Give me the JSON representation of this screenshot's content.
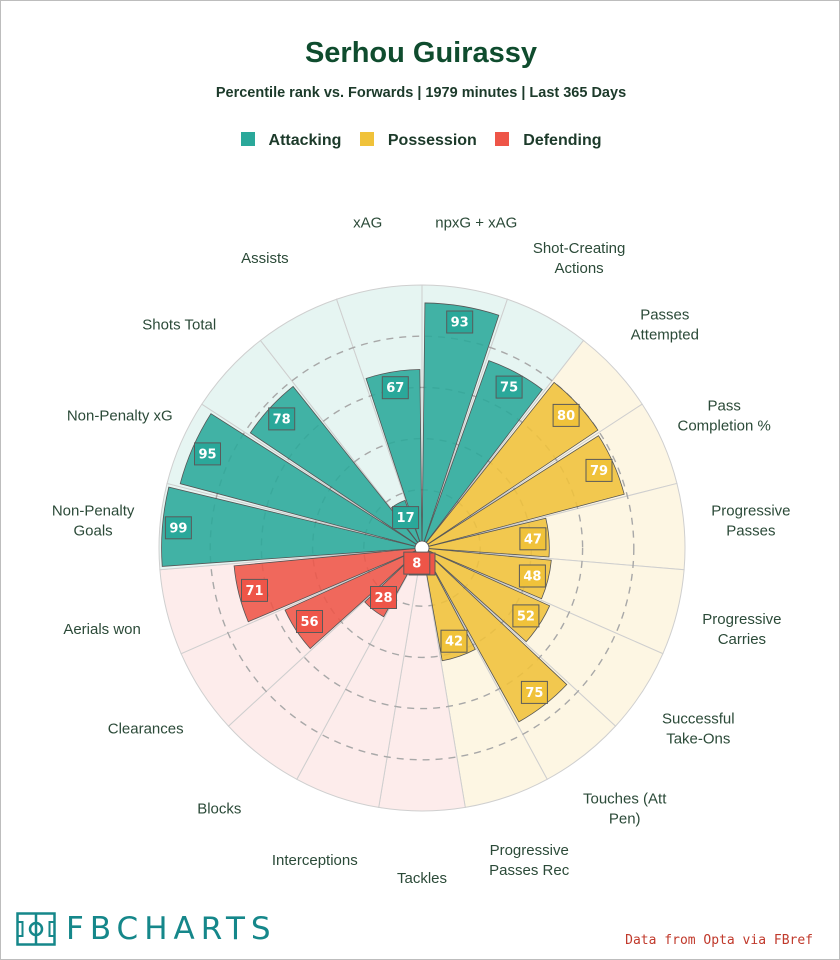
{
  "header": {
    "title": "Serhou Guirassy",
    "subtitle": "Percentile rank vs. Forwards | 1979 minutes | Last 365 Days"
  },
  "legend": [
    {
      "label": "Attacking",
      "color": "#2aa89a"
    },
    {
      "label": "Possession",
      "color": "#f0c23a"
    },
    {
      "label": "Defending",
      "color": "#ee5548"
    }
  ],
  "chart_data": {
    "type": "polar-bar",
    "rlim": [
      0,
      100
    ],
    "grid_rings": [
      20,
      40,
      60,
      80
    ],
    "categories": [
      {
        "label": "npxG + xAG",
        "value": 93,
        "group": "Attacking"
      },
      {
        "label": "Shot-Creating Actions",
        "value": 75,
        "group": "Attacking"
      },
      {
        "label": "Passes Attempted",
        "value": 80,
        "group": "Possession"
      },
      {
        "label": "Pass Completion %",
        "value": 79,
        "group": "Possession"
      },
      {
        "label": "Progressive Passes",
        "value": 47,
        "group": "Possession"
      },
      {
        "label": "Progressive Carries",
        "value": 48,
        "group": "Possession"
      },
      {
        "label": "Successful Take-Ons",
        "value": 52,
        "group": "Possession"
      },
      {
        "label": "Touches (Att Pen)",
        "value": 75,
        "group": "Possession"
      },
      {
        "label": "Progressive Passes Rec",
        "value": 42,
        "group": "Possession"
      },
      {
        "label": "Tackles",
        "value": 4,
        "group": "Defending"
      },
      {
        "label": "Interceptions",
        "value": 8,
        "group": "Defending"
      },
      {
        "label": "Blocks",
        "value": 28,
        "group": "Defending"
      },
      {
        "label": "Clearances",
        "value": 56,
        "group": "Defending"
      },
      {
        "label": "Aerials won",
        "value": 71,
        "group": "Defending"
      },
      {
        "label": "Non-Penalty Goals",
        "value": 99,
        "group": "Attacking"
      },
      {
        "label": "Non-Penalty xG",
        "value": 95,
        "group": "Attacking"
      },
      {
        "label": "Shots Total",
        "value": 78,
        "group": "Attacking"
      },
      {
        "label": "Assists",
        "value": 17,
        "group": "Attacking"
      },
      {
        "label": "xAG",
        "value": 67,
        "group": "Attacking"
      }
    ]
  },
  "footer": {
    "logo_text": "FBCHARTS",
    "source": "Data from Opta via FBref"
  }
}
